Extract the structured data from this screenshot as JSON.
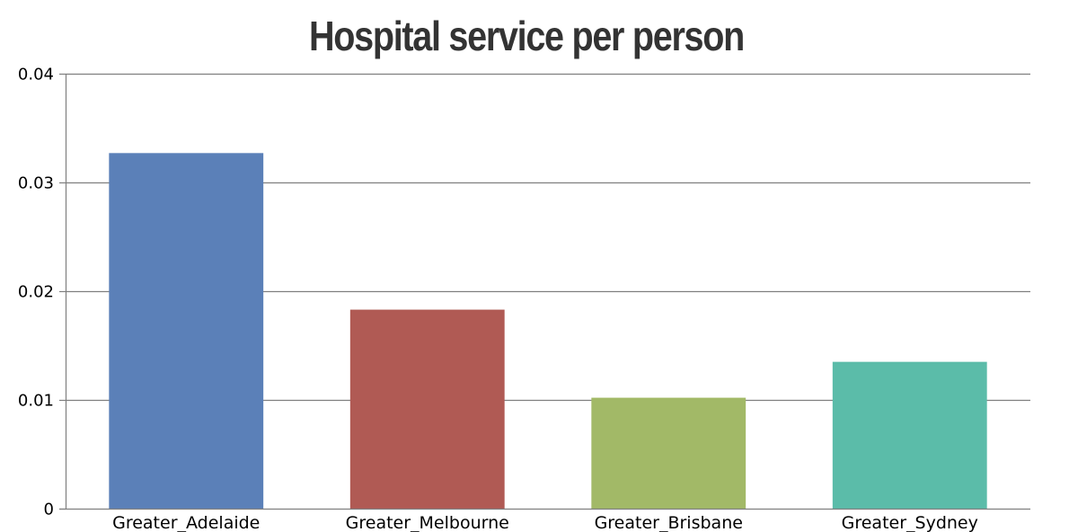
{
  "chart_data": {
    "type": "bar",
    "title": "Hospital service per person",
    "xlabel": "",
    "ylabel": "",
    "categories": [
      "Greater_Adelaide",
      "Greater_Melbourne",
      "Greater_Brisbane",
      "Greater_Sydney"
    ],
    "values": [
      0.0327,
      0.0183,
      0.0102,
      0.0135
    ],
    "colors": [
      "#5b80b8",
      "#b05a54",
      "#a2b967",
      "#5bbca9"
    ],
    "ylim": [
      0,
      0.04
    ],
    "yticks": [
      {
        "value": 0,
        "label": "0"
      },
      {
        "value": 0.01,
        "label": "0.01"
      },
      {
        "value": 0.02,
        "label": "0.02"
      },
      {
        "value": 0.03,
        "label": "0.03"
      },
      {
        "value": 0.04,
        "label": "0.04"
      }
    ],
    "grid": true,
    "legend": "none"
  }
}
